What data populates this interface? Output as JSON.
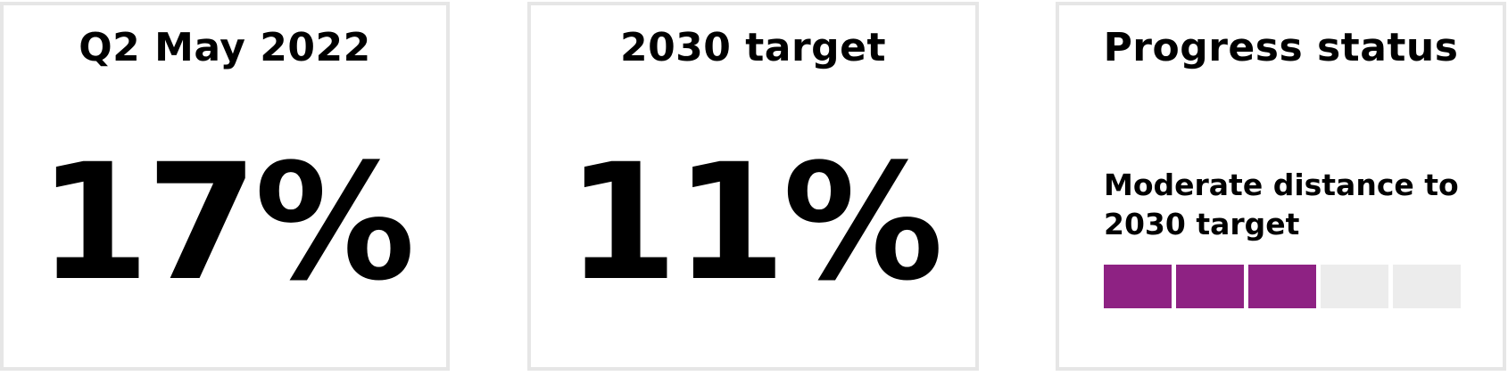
{
  "cards": [
    {
      "title": "Q2 May 2022",
      "value": "17%"
    },
    {
      "title": "2030 target",
      "value": "11%"
    },
    {
      "title": "Progress status",
      "status_text": "Moderate distance to 2030 target",
      "progress": {
        "filled_segments": 3,
        "total_segments": 5,
        "fill_color": "#8e2283",
        "empty_color": "#ececec"
      }
    }
  ],
  "colors": {
    "border": "#e6e6e6",
    "text": "#000000"
  }
}
